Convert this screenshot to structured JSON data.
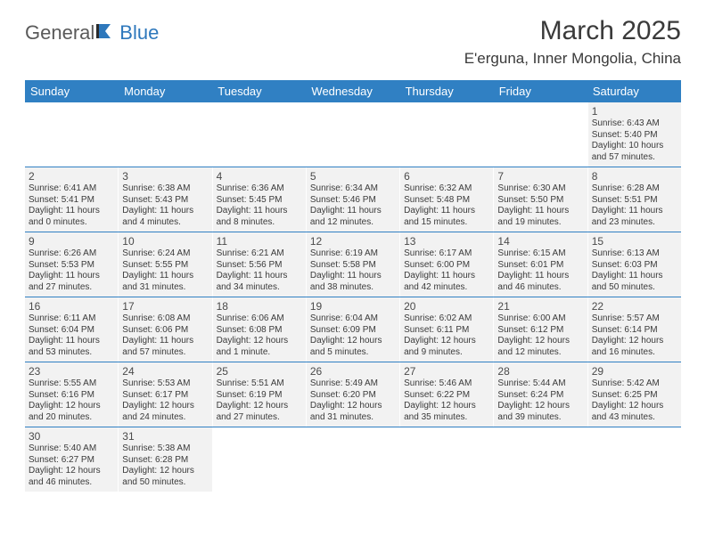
{
  "logo": {
    "part1": "General",
    "part2": "Blue"
  },
  "title": "March 2025",
  "location": "E'erguna, Inner Mongolia, China",
  "colors": {
    "header_bg": "#3080c3",
    "header_text": "#ffffff",
    "cell_bg": "#f2f2f2",
    "week_border": "#3080c3",
    "logo_gray": "#5a5a5a",
    "logo_blue": "#2e78bc"
  },
  "fonts": {
    "title_size": 30,
    "location_size": 17,
    "dayhdr_size": 13,
    "daynum_size": 12,
    "line_size": 10
  },
  "day_headers": [
    "Sunday",
    "Monday",
    "Tuesday",
    "Wednesday",
    "Thursday",
    "Friday",
    "Saturday"
  ],
  "weeks": [
    [
      null,
      null,
      null,
      null,
      null,
      null,
      {
        "n": "1",
        "sr": "Sunrise: 6:43 AM",
        "ss": "Sunset: 5:40 PM",
        "d1": "Daylight: 10 hours",
        "d2": "and 57 minutes."
      }
    ],
    [
      {
        "n": "2",
        "sr": "Sunrise: 6:41 AM",
        "ss": "Sunset: 5:41 PM",
        "d1": "Daylight: 11 hours",
        "d2": "and 0 minutes."
      },
      {
        "n": "3",
        "sr": "Sunrise: 6:38 AM",
        "ss": "Sunset: 5:43 PM",
        "d1": "Daylight: 11 hours",
        "d2": "and 4 minutes."
      },
      {
        "n": "4",
        "sr": "Sunrise: 6:36 AM",
        "ss": "Sunset: 5:45 PM",
        "d1": "Daylight: 11 hours",
        "d2": "and 8 minutes."
      },
      {
        "n": "5",
        "sr": "Sunrise: 6:34 AM",
        "ss": "Sunset: 5:46 PM",
        "d1": "Daylight: 11 hours",
        "d2": "and 12 minutes."
      },
      {
        "n": "6",
        "sr": "Sunrise: 6:32 AM",
        "ss": "Sunset: 5:48 PM",
        "d1": "Daylight: 11 hours",
        "d2": "and 15 minutes."
      },
      {
        "n": "7",
        "sr": "Sunrise: 6:30 AM",
        "ss": "Sunset: 5:50 PM",
        "d1": "Daylight: 11 hours",
        "d2": "and 19 minutes."
      },
      {
        "n": "8",
        "sr": "Sunrise: 6:28 AM",
        "ss": "Sunset: 5:51 PM",
        "d1": "Daylight: 11 hours",
        "d2": "and 23 minutes."
      }
    ],
    [
      {
        "n": "9",
        "sr": "Sunrise: 6:26 AM",
        "ss": "Sunset: 5:53 PM",
        "d1": "Daylight: 11 hours",
        "d2": "and 27 minutes."
      },
      {
        "n": "10",
        "sr": "Sunrise: 6:24 AM",
        "ss": "Sunset: 5:55 PM",
        "d1": "Daylight: 11 hours",
        "d2": "and 31 minutes."
      },
      {
        "n": "11",
        "sr": "Sunrise: 6:21 AM",
        "ss": "Sunset: 5:56 PM",
        "d1": "Daylight: 11 hours",
        "d2": "and 34 minutes."
      },
      {
        "n": "12",
        "sr": "Sunrise: 6:19 AM",
        "ss": "Sunset: 5:58 PM",
        "d1": "Daylight: 11 hours",
        "d2": "and 38 minutes."
      },
      {
        "n": "13",
        "sr": "Sunrise: 6:17 AM",
        "ss": "Sunset: 6:00 PM",
        "d1": "Daylight: 11 hours",
        "d2": "and 42 minutes."
      },
      {
        "n": "14",
        "sr": "Sunrise: 6:15 AM",
        "ss": "Sunset: 6:01 PM",
        "d1": "Daylight: 11 hours",
        "d2": "and 46 minutes."
      },
      {
        "n": "15",
        "sr": "Sunrise: 6:13 AM",
        "ss": "Sunset: 6:03 PM",
        "d1": "Daylight: 11 hours",
        "d2": "and 50 minutes."
      }
    ],
    [
      {
        "n": "16",
        "sr": "Sunrise: 6:11 AM",
        "ss": "Sunset: 6:04 PM",
        "d1": "Daylight: 11 hours",
        "d2": "and 53 minutes."
      },
      {
        "n": "17",
        "sr": "Sunrise: 6:08 AM",
        "ss": "Sunset: 6:06 PM",
        "d1": "Daylight: 11 hours",
        "d2": "and 57 minutes."
      },
      {
        "n": "18",
        "sr": "Sunrise: 6:06 AM",
        "ss": "Sunset: 6:08 PM",
        "d1": "Daylight: 12 hours",
        "d2": "and 1 minute."
      },
      {
        "n": "19",
        "sr": "Sunrise: 6:04 AM",
        "ss": "Sunset: 6:09 PM",
        "d1": "Daylight: 12 hours",
        "d2": "and 5 minutes."
      },
      {
        "n": "20",
        "sr": "Sunrise: 6:02 AM",
        "ss": "Sunset: 6:11 PM",
        "d1": "Daylight: 12 hours",
        "d2": "and 9 minutes."
      },
      {
        "n": "21",
        "sr": "Sunrise: 6:00 AM",
        "ss": "Sunset: 6:12 PM",
        "d1": "Daylight: 12 hours",
        "d2": "and 12 minutes."
      },
      {
        "n": "22",
        "sr": "Sunrise: 5:57 AM",
        "ss": "Sunset: 6:14 PM",
        "d1": "Daylight: 12 hours",
        "d2": "and 16 minutes."
      }
    ],
    [
      {
        "n": "23",
        "sr": "Sunrise: 5:55 AM",
        "ss": "Sunset: 6:16 PM",
        "d1": "Daylight: 12 hours",
        "d2": "and 20 minutes."
      },
      {
        "n": "24",
        "sr": "Sunrise: 5:53 AM",
        "ss": "Sunset: 6:17 PM",
        "d1": "Daylight: 12 hours",
        "d2": "and 24 minutes."
      },
      {
        "n": "25",
        "sr": "Sunrise: 5:51 AM",
        "ss": "Sunset: 6:19 PM",
        "d1": "Daylight: 12 hours",
        "d2": "and 27 minutes."
      },
      {
        "n": "26",
        "sr": "Sunrise: 5:49 AM",
        "ss": "Sunset: 6:20 PM",
        "d1": "Daylight: 12 hours",
        "d2": "and 31 minutes."
      },
      {
        "n": "27",
        "sr": "Sunrise: 5:46 AM",
        "ss": "Sunset: 6:22 PM",
        "d1": "Daylight: 12 hours",
        "d2": "and 35 minutes."
      },
      {
        "n": "28",
        "sr": "Sunrise: 5:44 AM",
        "ss": "Sunset: 6:24 PM",
        "d1": "Daylight: 12 hours",
        "d2": "and 39 minutes."
      },
      {
        "n": "29",
        "sr": "Sunrise: 5:42 AM",
        "ss": "Sunset: 6:25 PM",
        "d1": "Daylight: 12 hours",
        "d2": "and 43 minutes."
      }
    ],
    [
      {
        "n": "30",
        "sr": "Sunrise: 5:40 AM",
        "ss": "Sunset: 6:27 PM",
        "d1": "Daylight: 12 hours",
        "d2": "and 46 minutes."
      },
      {
        "n": "31",
        "sr": "Sunrise: 5:38 AM",
        "ss": "Sunset: 6:28 PM",
        "d1": "Daylight: 12 hours",
        "d2": "and 50 minutes."
      },
      null,
      null,
      null,
      null,
      null
    ]
  ]
}
